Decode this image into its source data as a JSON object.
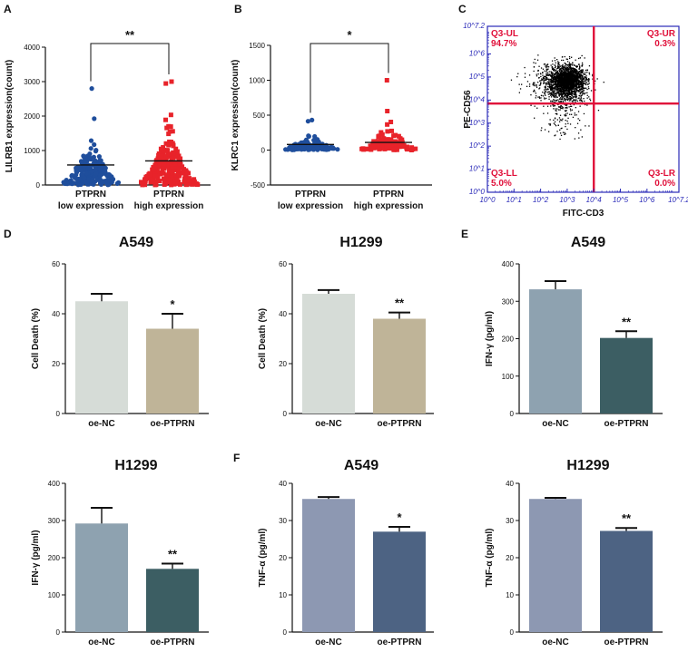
{
  "panel_letters": [
    "A",
    "B",
    "C",
    "D",
    "E",
    "F"
  ],
  "chart_data": [
    {
      "id": "A",
      "type": "scatter",
      "ylabel": "LILRB1 expression(count)",
      "ylim": [
        0,
        4000
      ],
      "yticks": [
        0,
        1000,
        2000,
        3000,
        4000
      ],
      "categories": [
        "PTPRN\nlow expression",
        "PTPRN\nhigh expression"
      ],
      "category_lines": [
        [
          "PTPRN",
          "low expression"
        ],
        [
          "PTPRN",
          "high expression"
        ]
      ],
      "series": [
        {
          "name": "low expression",
          "color": "#1f4e9c",
          "marker": "circle",
          "max": 2800,
          "mean": 580,
          "spread_sd": 520
        },
        {
          "name": "high expression",
          "color": "#e8232a",
          "marker": "square",
          "max": 3000,
          "mean": 700,
          "spread_sd": 620
        }
      ],
      "significance": "**"
    },
    {
      "id": "B",
      "type": "scatter",
      "ylabel": "KLRC1 expression(count)",
      "ylim": [
        -500,
        1500
      ],
      "yticks": [
        -500,
        0,
        500,
        1000,
        1500
      ],
      "categories": [
        "PTPRN\nlow expression",
        "PTPRN\nhigh expression"
      ],
      "category_lines": [
        [
          "PTPRN",
          "low expression"
        ],
        [
          "PTPRN",
          "high expression"
        ]
      ],
      "series": [
        {
          "name": "low expression",
          "color": "#1f4e9c",
          "marker": "circle",
          "max": 430,
          "mean": 80,
          "spread_sd": 90
        },
        {
          "name": "high expression",
          "color": "#e8232a",
          "marker": "square",
          "max": 1000,
          "mean": 110,
          "spread_sd": 140
        }
      ],
      "significance": "*"
    },
    {
      "id": "C",
      "type": "scatter",
      "subtype": "flow-cytometry",
      "xlabel": "FITC-CD3",
      "ylabel": "PE-CD56",
      "x_ticks": [
        "10^0",
        "10^1",
        "10^2",
        "10^3",
        "10^4",
        "10^5",
        "10^6",
        "10^7.2"
      ],
      "y_ticks": [
        "10^0",
        "10^1",
        "10^2",
        "10^3",
        "10^4",
        "10^5",
        "10^6",
        "10^7.2"
      ],
      "axis_range_log10": [
        0,
        7.2
      ],
      "gate_log10": {
        "x": 4.0,
        "y": 3.85
      },
      "quadrants": [
        {
          "name": "Q3-UL",
          "percent": "94.7%"
        },
        {
          "name": "Q3-UR",
          "percent": "0.3%"
        },
        {
          "name": "Q3-LL",
          "percent": "5.0%"
        },
        {
          "name": "Q3-LR",
          "percent": "0.0%"
        }
      ]
    },
    {
      "id": "D1",
      "type": "bar",
      "title": "A549",
      "ylabel": "Cell Death (%)",
      "ylim": [
        0,
        60
      ],
      "yticks": [
        0,
        20,
        40,
        60
      ],
      "categories": [
        "oe-NC",
        "oe-PTPRN"
      ],
      "values": [
        45,
        34
      ],
      "errors": [
        3,
        6
      ],
      "colors": [
        "#d6dcd7",
        "#bfb498"
      ],
      "significance": [
        "",
        "*"
      ]
    },
    {
      "id": "D2",
      "type": "bar",
      "title": "H1299",
      "ylabel": "Cell Death (%)",
      "ylim": [
        0,
        60
      ],
      "yticks": [
        0,
        20,
        40,
        60
      ],
      "categories": [
        "oe-NC",
        "oe-PTPRN"
      ],
      "values": [
        48,
        38
      ],
      "errors": [
        1.5,
        2.5
      ],
      "colors": [
        "#d6dcd7",
        "#bfb498"
      ],
      "significance": [
        "",
        "**"
      ]
    },
    {
      "id": "E1",
      "type": "bar",
      "title": "A549",
      "ylabel": "IFN-γ (pg/ml)",
      "ylim": [
        0,
        400
      ],
      "yticks": [
        0,
        100,
        200,
        300,
        400
      ],
      "categories": [
        "oe-NC",
        "oe-PTPRN"
      ],
      "values": [
        332,
        202
      ],
      "errors": [
        22,
        18
      ],
      "colors": [
        "#8ea2b0",
        "#3c5e63"
      ],
      "significance": [
        "",
        "**"
      ]
    },
    {
      "id": "E2",
      "type": "bar",
      "title": "H1299",
      "ylabel": "IFN-γ (pg/ml)",
      "ylim": [
        0,
        400
      ],
      "yticks": [
        0,
        100,
        200,
        300,
        400
      ],
      "categories": [
        "oe-NC",
        "oe-PTPRN"
      ],
      "values": [
        292,
        170
      ],
      "errors": [
        42,
        14
      ],
      "colors": [
        "#8ea2b0",
        "#3c5e63"
      ],
      "significance": [
        "",
        "**"
      ]
    },
    {
      "id": "F1",
      "type": "bar",
      "title": "A549",
      "ylabel": "TNF-α (pg/ml)",
      "ylim": [
        0,
        40
      ],
      "yticks": [
        0,
        10,
        20,
        30,
        40
      ],
      "categories": [
        "oe-NC",
        "oe-PTPRN"
      ],
      "values": [
        35.8,
        27
      ],
      "errors": [
        0.5,
        1.3
      ],
      "colors": [
        "#8d98b2",
        "#4d6383"
      ],
      "significance": [
        "",
        "*"
      ]
    },
    {
      "id": "F2",
      "type": "bar",
      "title": "H1299",
      "ylabel": "TNF-α (pg/ml)",
      "ylim": [
        0,
        40
      ],
      "yticks": [
        0,
        10,
        20,
        30,
        40
      ],
      "categories": [
        "oe-NC",
        "oe-PTPRN"
      ],
      "values": [
        35.8,
        27.2
      ],
      "errors": [
        0.3,
        0.8
      ],
      "colors": [
        "#8d98b2",
        "#4d6383"
      ],
      "significance": [
        "",
        "**"
      ]
    }
  ]
}
